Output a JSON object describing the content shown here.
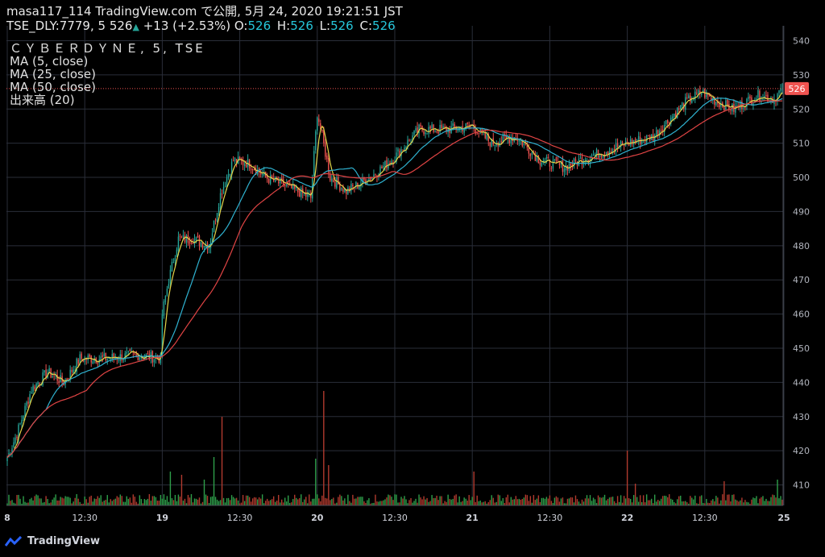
{
  "header": {
    "published": "masa117_114 TradingView.com で公開, 5月 24, 2020 19:21:51 JST",
    "symbol": "TSE_DLY:7779, 5",
    "price": "526",
    "change": "+13 (+2.53%)",
    "o_label": "O:",
    "o": "526",
    "h_label": "H:",
    "h": "526",
    "l_label": "L:",
    "l": "526",
    "c_label": "C:",
    "c": "526"
  },
  "legend": {
    "name": "ＣＹＢＥＲＤＹＮＥ, 5, TSE",
    "ma5": "MA (5, close)",
    "ma25": "MA (25, close)",
    "ma50": "MA (50, close)",
    "volume": "出来高 (20)"
  },
  "footer": {
    "brand": "TradingView"
  },
  "colors": {
    "up": "#26a69a",
    "down": "#ef5350",
    "ma5": "#e6d64a",
    "ma25": "#2fb2d0",
    "ma50": "#e04444",
    "vol_up": "#2e9e4a",
    "vol_down": "#b03a2e",
    "grid": "#2a2e39",
    "last_price_bg": "#ef5350"
  },
  "chart_data": {
    "type": "candlestick",
    "ylim": [
      404,
      542
    ],
    "y_ticks": [
      410,
      420,
      430,
      440,
      450,
      460,
      470,
      480,
      490,
      500,
      510,
      520,
      530,
      540
    ],
    "last_price": 526,
    "x_ticks": [
      {
        "label": "8",
        "bold": true,
        "bar": 0
      },
      {
        "label": "12:30",
        "bold": false,
        "bar": 48
      },
      {
        "label": "19",
        "bold": true,
        "bar": 96
      },
      {
        "label": "12:30",
        "bold": false,
        "bar": 144
      },
      {
        "label": "20",
        "bold": true,
        "bar": 192
      },
      {
        "label": "12:30",
        "bold": false,
        "bar": 240
      },
      {
        "label": "21",
        "bold": true,
        "bar": 288
      },
      {
        "label": "12:30",
        "bold": false,
        "bar": 336
      },
      {
        "label": "22",
        "bold": true,
        "bar": 384
      },
      {
        "label": "12:30",
        "bold": false,
        "bar": 432
      },
      {
        "label": "25",
        "bold": true,
        "bar": 481
      }
    ],
    "bar_count": 481,
    "close_anchors": [
      [
        0,
        418
      ],
      [
        6,
        425
      ],
      [
        15,
        438
      ],
      [
        25,
        443
      ],
      [
        35,
        440
      ],
      [
        45,
        447
      ],
      [
        60,
        447
      ],
      [
        80,
        448
      ],
      [
        95,
        447
      ],
      [
        96,
        460
      ],
      [
        100,
        470
      ],
      [
        106,
        482
      ],
      [
        115,
        482
      ],
      [
        125,
        480
      ],
      [
        132,
        495
      ],
      [
        140,
        505
      ],
      [
        150,
        504
      ],
      [
        160,
        500
      ],
      [
        175,
        497
      ],
      [
        188,
        494
      ],
      [
        192,
        519
      ],
      [
        200,
        500
      ],
      [
        210,
        496
      ],
      [
        225,
        500
      ],
      [
        240,
        506
      ],
      [
        255,
        514
      ],
      [
        270,
        514
      ],
      [
        288,
        515
      ],
      [
        300,
        510
      ],
      [
        315,
        512
      ],
      [
        330,
        505
      ],
      [
        345,
        503
      ],
      [
        360,
        506
      ],
      [
        384,
        510
      ],
      [
        400,
        512
      ],
      [
        420,
        522
      ],
      [
        430,
        525
      ],
      [
        440,
        522
      ],
      [
        450,
        520
      ],
      [
        465,
        524
      ],
      [
        475,
        523
      ],
      [
        480,
        526
      ]
    ],
    "volume_spikes": [
      {
        "bar": 101,
        "value": 42
      },
      {
        "bar": 108,
        "value": 38
      },
      {
        "bar": 122,
        "value": 32
      },
      {
        "bar": 133,
        "value": 110
      },
      {
        "bar": 128,
        "value": 60
      },
      {
        "bar": 191,
        "value": 58
      },
      {
        "bar": 196,
        "value": 142
      },
      {
        "bar": 199,
        "value": 50
      },
      {
        "bar": 289,
        "value": 42
      },
      {
        "bar": 384,
        "value": 68
      },
      {
        "bar": 389,
        "value": 27
      },
      {
        "bar": 444,
        "value": 30
      },
      {
        "bar": 477,
        "value": 32
      }
    ],
    "series": [
      {
        "name": "MA (5, close)"
      },
      {
        "name": "MA (25, close)"
      },
      {
        "name": "MA (50, close)"
      },
      {
        "name": "出来高 (20)"
      }
    ]
  }
}
